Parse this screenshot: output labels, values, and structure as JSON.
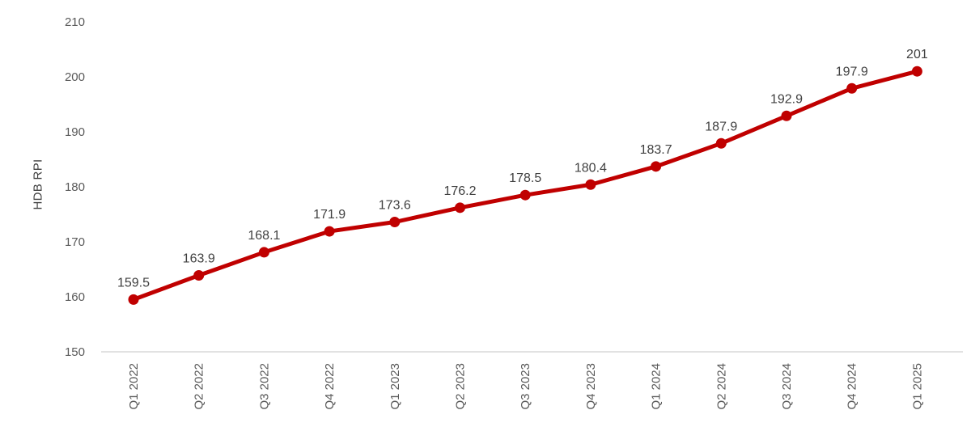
{
  "chart_data": {
    "type": "line",
    "title": "",
    "xlabel": "",
    "ylabel": "HDB RPI",
    "categories": [
      "Q1 2022",
      "Q2 2022",
      "Q3 2022",
      "Q4 2022",
      "Q1 2023",
      "Q2 2023",
      "Q3 2023",
      "Q4 2023",
      "Q1 2024",
      "Q2 2024",
      "Q3 2024",
      "Q4 2024",
      "Q1 2025"
    ],
    "series": [
      {
        "name": "HDB RPI",
        "values": [
          159.5,
          163.9,
          168.1,
          171.9,
          173.6,
          176.2,
          178.5,
          180.4,
          183.7,
          187.9,
          192.9,
          197.9,
          201
        ],
        "data_labels": [
          "159.5",
          "163.9",
          "168.1",
          "171.9",
          "173.6",
          "176.2",
          "178.5",
          "180.4",
          "183.7",
          "187.9",
          "192.9",
          "197.9",
          "201"
        ]
      }
    ],
    "ylim": [
      150,
      210
    ],
    "yticks": [
      150,
      160,
      170,
      180,
      190,
      200,
      210
    ],
    "grid": false,
    "legend_position": "none",
    "x_labels_rotated_degrees": 90,
    "colors": {
      "series_line": "#c00000",
      "marker": "#c00000",
      "data_label": "#404040",
      "tick_label": "#595959",
      "axis_line": "#d9d9d9",
      "background": "#ffffff"
    }
  }
}
